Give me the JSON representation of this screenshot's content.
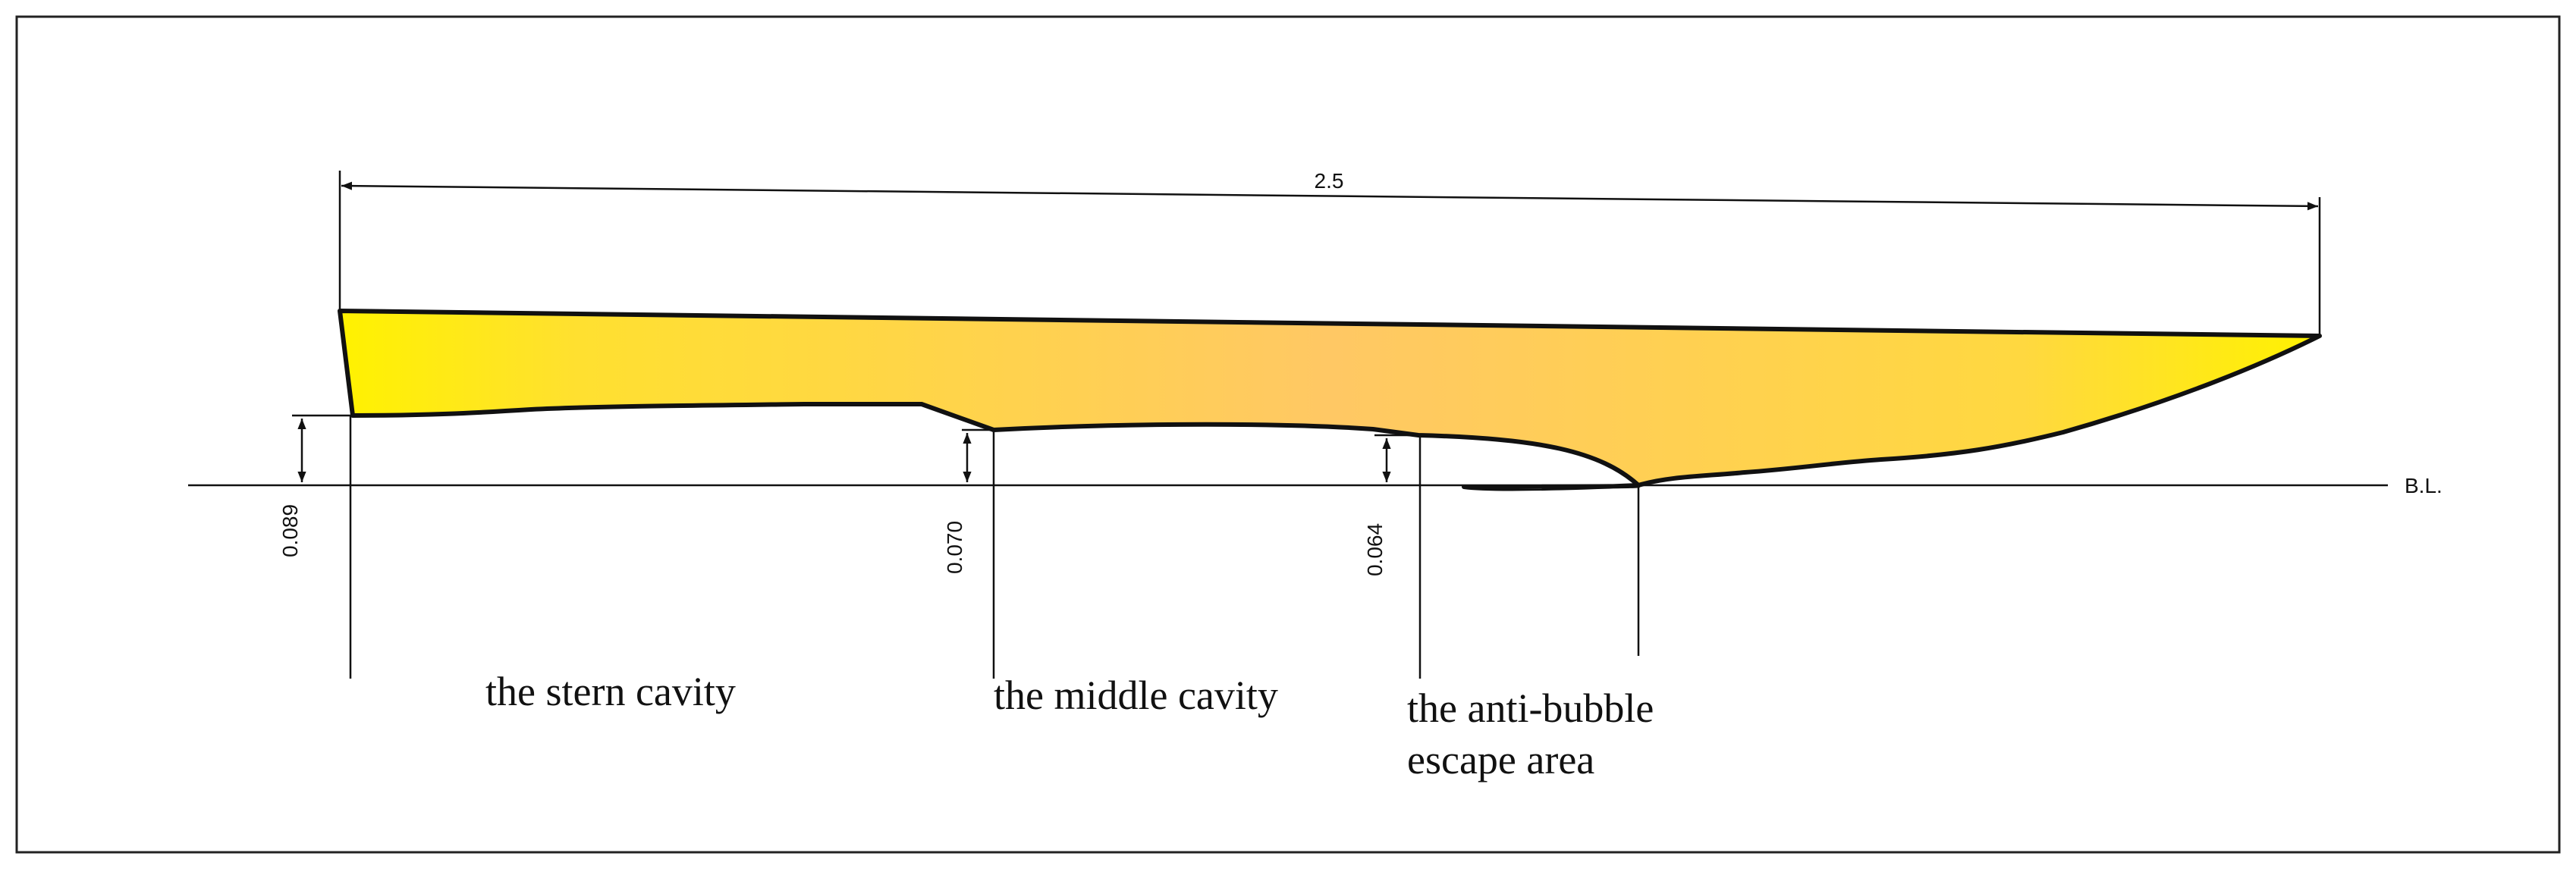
{
  "dimensions": {
    "overall_length": "2.5",
    "stern_cavity_height": "0.089",
    "middle_cavity_height": "0.070",
    "anti_bubble_height": "0.064"
  },
  "baseline_label": "B.L.",
  "labels": {
    "stern_cavity": "the stern cavity",
    "middle_cavity": "the middle cavity",
    "anti_bubble_line1": "the anti-bubble",
    "anti_bubble_line2": "escape area"
  },
  "colors": {
    "hull_edge": "#FFF200",
    "hull_center": "#FFC864",
    "line": "#111111"
  }
}
